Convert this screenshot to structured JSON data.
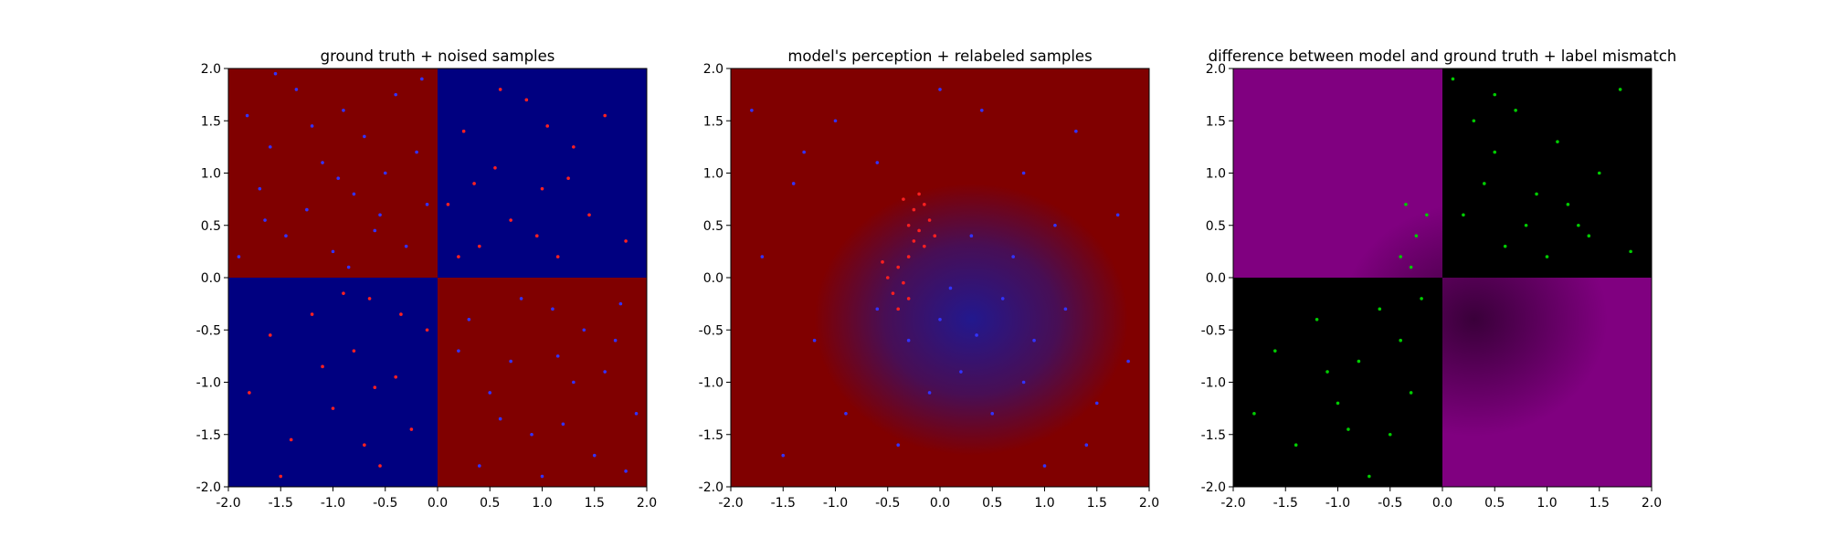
{
  "figure": {
    "background": "#ffffff"
  },
  "chart_data": [
    {
      "type": "heatmap",
      "title": "ground truth + noised samples",
      "xlabel": "",
      "ylabel": "",
      "xlim": [
        -2.0,
        2.0
      ],
      "ylim": [
        -2.0,
        2.0
      ],
      "xticks": [
        "-2.0",
        "-1.5",
        "-1.0",
        "-0.5",
        "0.0",
        "0.5",
        "1.0",
        "1.5",
        "2.0"
      ],
      "yticks": [
        "-2.0",
        "-1.5",
        "-1.0",
        "-0.5",
        "0.0",
        "0.5",
        "1.0",
        "1.5",
        "2.0"
      ],
      "grid": false,
      "legend": "none",
      "background_regions": [
        {
          "x": [
            -2.0,
            0.0
          ],
          "y": [
            0.0,
            2.0
          ],
          "color": "#800000"
        },
        {
          "x": [
            0.0,
            2.0
          ],
          "y": [
            0.0,
            2.0
          ],
          "color": "#000080"
        },
        {
          "x": [
            -2.0,
            0.0
          ],
          "y": [
            -2.0,
            0.0
          ],
          "color": "#000080"
        },
        {
          "x": [
            0.0,
            2.0
          ],
          "y": [
            -2.0,
            0.0
          ],
          "color": "#800000"
        }
      ],
      "series": [
        {
          "color": "#3333ff",
          "points": [
            [
              -1.82,
              1.55
            ],
            [
              -1.7,
              0.85
            ],
            [
              -1.6,
              1.25
            ],
            [
              -1.45,
              0.4
            ],
            [
              -1.35,
              1.8
            ],
            [
              -1.25,
              0.65
            ],
            [
              -1.1,
              1.1
            ],
            [
              -1.0,
              0.25
            ],
            [
              -0.9,
              1.6
            ],
            [
              -0.8,
              0.8
            ],
            [
              -0.7,
              1.35
            ],
            [
              -0.6,
              0.45
            ],
            [
              -0.5,
              1.0
            ],
            [
              -0.4,
              1.75
            ],
            [
              -0.3,
              0.3
            ],
            [
              -0.2,
              1.2
            ],
            [
              -0.1,
              0.7
            ],
            [
              -1.9,
              0.2
            ],
            [
              -1.55,
              1.95
            ],
            [
              -0.85,
              0.1
            ],
            [
              -0.15,
              1.9
            ],
            [
              -1.2,
              1.45
            ],
            [
              -0.55,
              0.6
            ],
            [
              -1.65,
              0.55
            ],
            [
              -0.95,
              0.95
            ],
            [
              0.3,
              -0.4
            ],
            [
              0.5,
              -1.1
            ],
            [
              0.7,
              -0.8
            ],
            [
              0.9,
              -1.5
            ],
            [
              1.1,
              -0.3
            ],
            [
              1.3,
              -1.0
            ],
            [
              1.5,
              -1.7
            ],
            [
              1.7,
              -0.6
            ],
            [
              1.9,
              -1.3
            ],
            [
              0.4,
              -1.8
            ],
            [
              0.8,
              -0.2
            ],
            [
              1.2,
              -1.4
            ],
            [
              1.6,
              -0.9
            ],
            [
              0.2,
              -0.7
            ],
            [
              1.0,
              -1.9
            ],
            [
              1.4,
              -0.5
            ],
            [
              1.8,
              -1.85
            ],
            [
              0.6,
              -1.35
            ],
            [
              1.15,
              -0.75
            ],
            [
              1.75,
              -0.25
            ]
          ]
        },
        {
          "color": "#ff2020",
          "points": [
            [
              0.1,
              0.7
            ],
            [
              0.25,
              1.4
            ],
            [
              0.4,
              0.3
            ],
            [
              0.55,
              1.05
            ],
            [
              0.7,
              0.55
            ],
            [
              0.85,
              1.7
            ],
            [
              1.0,
              0.85
            ],
            [
              1.15,
              0.2
            ],
            [
              1.3,
              1.25
            ],
            [
              1.45,
              0.6
            ],
            [
              1.6,
              1.55
            ],
            [
              1.8,
              0.35
            ],
            [
              0.2,
              0.2
            ],
            [
              0.6,
              1.8
            ],
            [
              1.05,
              1.45
            ],
            [
              0.35,
              0.9
            ],
            [
              0.95,
              0.4
            ],
            [
              1.25,
              0.95
            ],
            [
              -1.8,
              -1.1
            ],
            [
              -1.6,
              -0.55
            ],
            [
              -1.4,
              -1.55
            ],
            [
              -1.2,
              -0.35
            ],
            [
              -1.0,
              -1.25
            ],
            [
              -0.8,
              -0.7
            ],
            [
              -0.65,
              -0.2
            ],
            [
              -0.55,
              -1.8
            ],
            [
              -0.4,
              -0.95
            ],
            [
              -0.25,
              -1.45
            ],
            [
              -0.1,
              -0.5
            ],
            [
              -1.5,
              -1.9
            ],
            [
              -0.9,
              -0.15
            ],
            [
              -0.7,
              -1.6
            ],
            [
              -0.35,
              -0.35
            ],
            [
              -1.1,
              -0.85
            ],
            [
              -0.6,
              -1.05
            ]
          ]
        }
      ]
    },
    {
      "type": "heatmap",
      "title": "model's perception + relabeled samples",
      "xlabel": "",
      "ylabel": "",
      "xlim": [
        -2.0,
        2.0
      ],
      "ylim": [
        -2.0,
        2.0
      ],
      "xticks": [
        "-2.0",
        "-1.5",
        "-1.0",
        "-0.5",
        "0.0",
        "0.5",
        "1.0",
        "1.5",
        "2.0"
      ],
      "yticks": [
        "-2.0",
        "-1.5",
        "-1.0",
        "-0.5",
        "0.0",
        "0.5",
        "1.0",
        "1.5",
        "2.0"
      ],
      "grid": false,
      "legend": "none",
      "background": {
        "color": "#800000",
        "blended_region": {
          "center": [
            0.3,
            -0.4
          ],
          "radius": [
            1.5,
            1.3
          ],
          "color": "#1a1a9a"
        }
      },
      "series": [
        {
          "color": "#3333ff",
          "points": [
            [
              -1.8,
              1.6
            ],
            [
              -1.4,
              0.9
            ],
            [
              -1.0,
              1.5
            ],
            [
              -0.6,
              1.1
            ],
            [
              -1.7,
              0.2
            ],
            [
              -1.2,
              -0.6
            ],
            [
              -0.9,
              -1.3
            ],
            [
              -1.5,
              -1.7
            ],
            [
              0.4,
              1.6
            ],
            [
              0.8,
              1.0
            ],
            [
              1.3,
              1.4
            ],
            [
              1.7,
              0.6
            ],
            [
              0.3,
              0.4
            ],
            [
              0.6,
              -0.2
            ],
            [
              0.9,
              -0.6
            ],
            [
              1.2,
              -0.3
            ],
            [
              0.2,
              -0.9
            ],
            [
              0.5,
              -1.3
            ],
            [
              0.0,
              -0.4
            ],
            [
              -0.1,
              -1.1
            ],
            [
              1.5,
              -1.2
            ],
            [
              1.8,
              -0.8
            ],
            [
              1.0,
              -1.8
            ],
            [
              -0.4,
              -1.6
            ],
            [
              0.1,
              -0.1
            ],
            [
              0.7,
              0.2
            ],
            [
              1.1,
              0.5
            ],
            [
              -0.3,
              -0.6
            ],
            [
              0.35,
              -0.55
            ],
            [
              0.8,
              -1.0
            ],
            [
              -0.6,
              -0.3
            ],
            [
              1.4,
              -1.6
            ],
            [
              -1.3,
              1.2
            ],
            [
              0.0,
              1.8
            ]
          ]
        },
        {
          "color": "#ff2020",
          "points": [
            [
              -0.35,
              0.75
            ],
            [
              -0.25,
              0.65
            ],
            [
              -0.15,
              0.7
            ],
            [
              -0.3,
              0.5
            ],
            [
              -0.2,
              0.45
            ],
            [
              -0.1,
              0.55
            ],
            [
              -0.25,
              0.35
            ],
            [
              -0.15,
              0.3
            ],
            [
              -0.05,
              0.4
            ],
            [
              -0.4,
              0.1
            ],
            [
              -0.5,
              0.0
            ],
            [
              -0.35,
              -0.05
            ],
            [
              -0.45,
              -0.15
            ],
            [
              -0.3,
              -0.2
            ],
            [
              -0.4,
              -0.3
            ],
            [
              -0.55,
              0.15
            ],
            [
              -0.2,
              0.8
            ],
            [
              -0.3,
              0.2
            ]
          ]
        }
      ]
    },
    {
      "type": "heatmap",
      "title": "difference between model and ground truth + label mismatch",
      "xlabel": "",
      "ylabel": "",
      "xlim": [
        -2.0,
        2.0
      ],
      "ylim": [
        -2.0,
        2.0
      ],
      "xticks": [
        "-2.0",
        "-1.5",
        "-1.0",
        "-0.5",
        "0.0",
        "0.5",
        "1.0",
        "1.5",
        "2.0"
      ],
      "yticks": [
        "-2.0",
        "-1.5",
        "-1.0",
        "-0.5",
        "0.0",
        "0.5",
        "1.0",
        "1.5",
        "2.0"
      ],
      "grid": false,
      "legend": "none",
      "background_regions": [
        {
          "x": [
            -2.0,
            0.0
          ],
          "y": [
            0.0,
            2.0
          ],
          "color": "#800080"
        },
        {
          "x": [
            0.0,
            2.0
          ],
          "y": [
            0.0,
            2.0
          ],
          "color": "#000000"
        },
        {
          "x": [
            -2.0,
            0.0
          ],
          "y": [
            -2.0,
            0.0
          ],
          "color": "#000000"
        },
        {
          "x": [
            0.0,
            2.0
          ],
          "y": [
            -2.0,
            0.0
          ],
          "color": "#800080"
        }
      ],
      "series": [
        {
          "color": "#00cc00",
          "points": [
            [
              0.1,
              1.9
            ],
            [
              0.3,
              1.5
            ],
            [
              0.5,
              1.2
            ],
            [
              0.7,
              1.6
            ],
            [
              0.9,
              0.8
            ],
            [
              1.1,
              1.3
            ],
            [
              1.3,
              0.5
            ],
            [
              1.5,
              1.0
            ],
            [
              1.7,
              1.8
            ],
            [
              0.2,
              0.6
            ],
            [
              0.4,
              0.9
            ],
            [
              0.6,
              0.3
            ],
            [
              0.8,
              0.5
            ],
            [
              1.0,
              0.2
            ],
            [
              1.2,
              0.7
            ],
            [
              1.4,
              0.4
            ],
            [
              1.8,
              0.25
            ],
            [
              0.5,
              1.75
            ],
            [
              -1.8,
              -1.3
            ],
            [
              -1.6,
              -0.7
            ],
            [
              -1.4,
              -1.6
            ],
            [
              -1.2,
              -0.4
            ],
            [
              -1.0,
              -1.2
            ],
            [
              -0.8,
              -0.8
            ],
            [
              -0.6,
              -0.3
            ],
            [
              -0.5,
              -1.5
            ],
            [
              -0.4,
              -0.6
            ],
            [
              -0.3,
              -1.1
            ],
            [
              -0.2,
              -0.2
            ],
            [
              -0.7,
              -1.9
            ],
            [
              -1.1,
              -0.9
            ],
            [
              -0.9,
              -1.45
            ],
            [
              -0.35,
              0.7
            ],
            [
              -0.25,
              0.4
            ],
            [
              -0.4,
              0.2
            ],
            [
              -0.15,
              0.6
            ],
            [
              -0.3,
              0.1
            ]
          ]
        }
      ]
    }
  ]
}
